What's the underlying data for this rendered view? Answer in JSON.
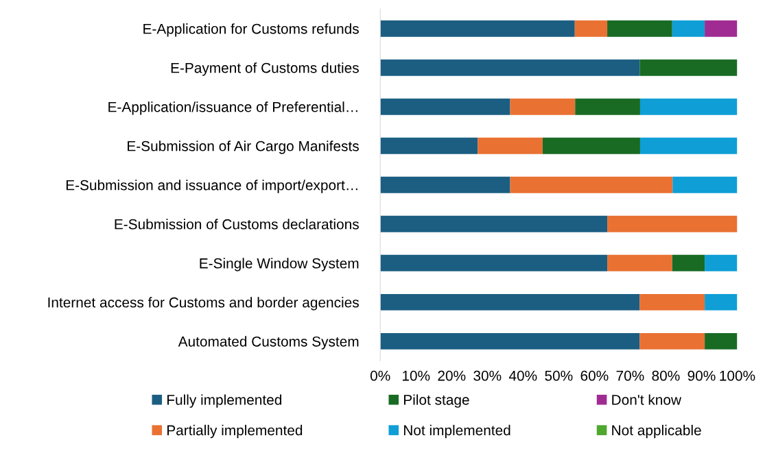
{
  "chart_data": {
    "type": "bar",
    "orientation": "horizontal",
    "stacked": true,
    "categories": [
      "E-Application for Customs refunds",
      "E-Payment of Customs duties",
      "E-Application/issuance of Preferential…",
      "E-Submission of Air Cargo Manifests",
      "E-Submission and issuance of import/export…",
      "E-Submission of Customs declarations",
      "E-Single Window System",
      "Internet access for Customs and border agencies",
      "Automated Customs System"
    ],
    "series": [
      {
        "name": "Fully implemented",
        "color": "#1b5e82",
        "values": [
          54.5,
          72.7,
          36.4,
          27.3,
          36.4,
          63.6,
          63.6,
          72.7,
          72.7
        ]
      },
      {
        "name": "Partially implemented",
        "color": "#e97132",
        "values": [
          9.1,
          0,
          18.2,
          18.2,
          45.5,
          36.4,
          18.2,
          18.2,
          18.2
        ]
      },
      {
        "name": "Pilot stage",
        "color": "#196b24",
        "values": [
          18.2,
          27.3,
          18.2,
          27.3,
          0,
          0,
          9.1,
          0,
          9.1
        ]
      },
      {
        "name": "Not implemented",
        "color": "#0f9ed5",
        "values": [
          9.1,
          0,
          27.2,
          27.2,
          18.1,
          0,
          9.1,
          9.1,
          0
        ]
      },
      {
        "name": "Don't know",
        "color": "#a02b93",
        "values": [
          9.1,
          0,
          0,
          0,
          0,
          0,
          0,
          0,
          0
        ]
      },
      {
        "name": "Not applicable",
        "color": "#4ea72e",
        "values": [
          0,
          0,
          0,
          0,
          0,
          0,
          0,
          0,
          0
        ]
      }
    ],
    "xlim": [
      0,
      100
    ],
    "xticks": [
      {
        "value": 0,
        "label": "0%"
      },
      {
        "value": 10,
        "label": "10%"
      },
      {
        "value": 20,
        "label": "20%"
      },
      {
        "value": 30,
        "label": "30%"
      },
      {
        "value": 40,
        "label": "40%"
      },
      {
        "value": 50,
        "label": "50%"
      },
      {
        "value": 60,
        "label": "60%"
      },
      {
        "value": 70,
        "label": "70%"
      },
      {
        "value": 80,
        "label": "80%"
      },
      {
        "value": 90,
        "label": "90%"
      },
      {
        "value": 100,
        "label": "100%"
      }
    ],
    "grid": false,
    "legend": "bottom"
  }
}
